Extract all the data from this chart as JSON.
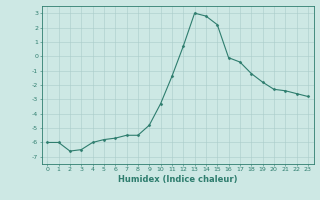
{
  "x": [
    0,
    1,
    2,
    3,
    4,
    5,
    6,
    7,
    8,
    9,
    10,
    11,
    12,
    13,
    14,
    15,
    16,
    17,
    18,
    19,
    20,
    21,
    22,
    23
  ],
  "y": [
    -6.0,
    -6.0,
    -6.6,
    -6.5,
    -6.0,
    -5.8,
    -5.7,
    -5.5,
    -5.5,
    -4.8,
    -3.3,
    -1.4,
    0.7,
    3.0,
    2.8,
    2.2,
    -0.1,
    -0.4,
    -1.2,
    -1.8,
    -2.3,
    -2.4,
    -2.6,
    -2.8
  ],
  "line_color": "#2e7d6e",
  "marker": "D",
  "markersize": 1.5,
  "linewidth": 0.8,
  "background_color": "#cde8e4",
  "grid_color": "#aaccca",
  "xlabel": "Humidex (Indice chaleur)",
  "xlim": [
    -0.5,
    23.5
  ],
  "ylim": [
    -7.5,
    3.5
  ],
  "yticks": [
    -7,
    -6,
    -5,
    -4,
    -3,
    -2,
    -1,
    0,
    1,
    2,
    3
  ],
  "xticks": [
    0,
    1,
    2,
    3,
    4,
    5,
    6,
    7,
    8,
    9,
    10,
    11,
    12,
    13,
    14,
    15,
    16,
    17,
    18,
    19,
    20,
    21,
    22,
    23
  ],
  "tick_color": "#2e7d6e",
  "tick_fontsize": 4.5,
  "xlabel_fontsize": 6.0,
  "spine_color": "#2e7d6e"
}
